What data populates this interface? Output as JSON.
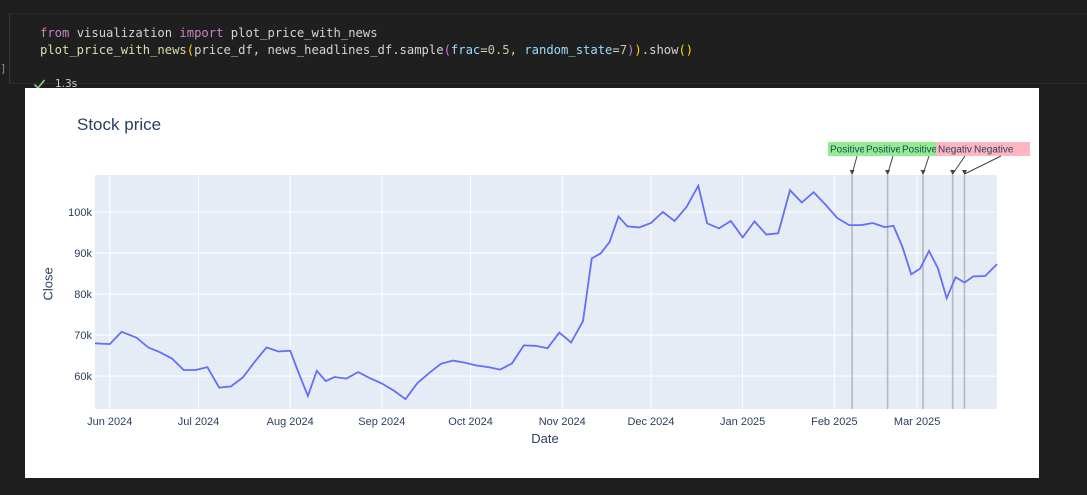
{
  "cell": {
    "marker": "]",
    "line1": {
      "from": "from",
      "module": " visualization ",
      "import": "import",
      "name": " plot_price_with_news"
    },
    "line2": {
      "fn": "plot_price_with_news",
      "open": "(",
      "arg1": "price_df, ",
      "arg2": "news_headlines_df.sample",
      "open2": "(",
      "frac_kw": "frac",
      "frac_eq": "=",
      "frac_val": "0.5",
      "comma": ", ",
      "rs_kw": "random_state",
      "rs_eq": "=",
      "rs_val": "7",
      "close2": ")",
      "close": ")",
      "show": ".show",
      "show_paren": "()"
    },
    "exec_time": "1.3s",
    "colors": {
      "background": "#1f1f1f",
      "success": "#89d185"
    }
  },
  "chart_data": {
    "type": "line",
    "title": "Stock price",
    "xlabel": "Date",
    "ylabel": "Close",
    "x_ticks": [
      "Jun 2024",
      "Jul 2024",
      "Aug 2024",
      "Sep 2024",
      "Oct 2024",
      "Nov 2024",
      "Dec 2024",
      "Jan 2025",
      "Feb 2025",
      "Mar 2025"
    ],
    "y_ticks": [
      "60k",
      "70k",
      "80k",
      "90k",
      "100k"
    ],
    "x_range": [
      "2024-05-27",
      "2025-03-28"
    ],
    "ylim": [
      52000,
      109000
    ],
    "grid": true,
    "line_color": "#636efa",
    "plot_bgcolor": "#e5ecf6",
    "series": [
      {
        "x": [
          "2024-05-27",
          "2024-06-01",
          "2024-06-05",
          "2024-06-10",
          "2024-06-14",
          "2024-06-18",
          "2024-06-22",
          "2024-06-26",
          "2024-06-30",
          "2024-07-04",
          "2024-07-08",
          "2024-07-12",
          "2024-07-16",
          "2024-07-20",
          "2024-07-24",
          "2024-07-28",
          "2024-08-01",
          "2024-08-04",
          "2024-08-07",
          "2024-08-10",
          "2024-08-13",
          "2024-08-16",
          "2024-08-20",
          "2024-08-24",
          "2024-08-28",
          "2024-09-01",
          "2024-09-05",
          "2024-09-09",
          "2024-09-13",
          "2024-09-17",
          "2024-09-21",
          "2024-09-25",
          "2024-09-29",
          "2024-10-03",
          "2024-10-07",
          "2024-10-11",
          "2024-10-15",
          "2024-10-19",
          "2024-10-23",
          "2024-10-27",
          "2024-10-31",
          "2024-11-04",
          "2024-11-08",
          "2024-11-11",
          "2024-11-14",
          "2024-11-17",
          "2024-11-20",
          "2024-11-23",
          "2024-11-27",
          "2024-12-01",
          "2024-12-05",
          "2024-12-09",
          "2024-12-13",
          "2024-12-17",
          "2024-12-20",
          "2024-12-24",
          "2024-12-28",
          "2025-01-01",
          "2025-01-05",
          "2025-01-09",
          "2025-01-13",
          "2025-01-17",
          "2025-01-21",
          "2025-01-25",
          "2025-01-29",
          "2025-02-02",
          "2025-02-06",
          "2025-02-10",
          "2025-02-14",
          "2025-02-18",
          "2025-02-21",
          "2025-02-24",
          "2025-02-27",
          "2025-03-02",
          "2025-03-05",
          "2025-03-08",
          "2025-03-11",
          "2025-03-14",
          "2025-03-17",
          "2025-03-20",
          "2025-03-24",
          "2025-03-28"
        ],
        "y": [
          68000,
          67800,
          70800,
          69400,
          67000,
          65800,
          64300,
          61500,
          61500,
          62200,
          57200,
          57500,
          59700,
          63500,
          67000,
          66000,
          66200,
          60500,
          55200,
          61300,
          58800,
          59800,
          59400,
          61000,
          59500,
          58200,
          56500,
          54400,
          58300,
          60800,
          63000,
          63800,
          63300,
          62600,
          62200,
          61600,
          63100,
          67500,
          67400,
          66800,
          70600,
          68200,
          73400,
          88700,
          89900,
          92700,
          98900,
          96500,
          96200,
          97300,
          100000,
          97800,
          101200,
          106400,
          97200,
          96000,
          97800,
          93800,
          97700,
          94500,
          94800,
          105300,
          102300,
          104800,
          101800,
          98500,
          96800,
          96800,
          97300,
          96300,
          96600,
          91500,
          84800,
          86200,
          90500,
          86300,
          79000,
          84100,
          82800,
          84300,
          84400,
          87300
        ]
      }
    ],
    "annotations": [
      {
        "text": "Positive",
        "date": "2025-02-07",
        "bgcolor": "#90ee90"
      },
      {
        "text": "Positive",
        "date": "2025-02-19",
        "bgcolor": "#90ee90"
      },
      {
        "text": "Positive",
        "date": "2025-03-03",
        "bgcolor": "#90ee90"
      },
      {
        "text": "Negative",
        "date": "2025-03-13",
        "bgcolor": "#ffb6c1"
      },
      {
        "text": "Negative",
        "date": "2025-03-17",
        "bgcolor": "#ffb6c1"
      }
    ]
  }
}
